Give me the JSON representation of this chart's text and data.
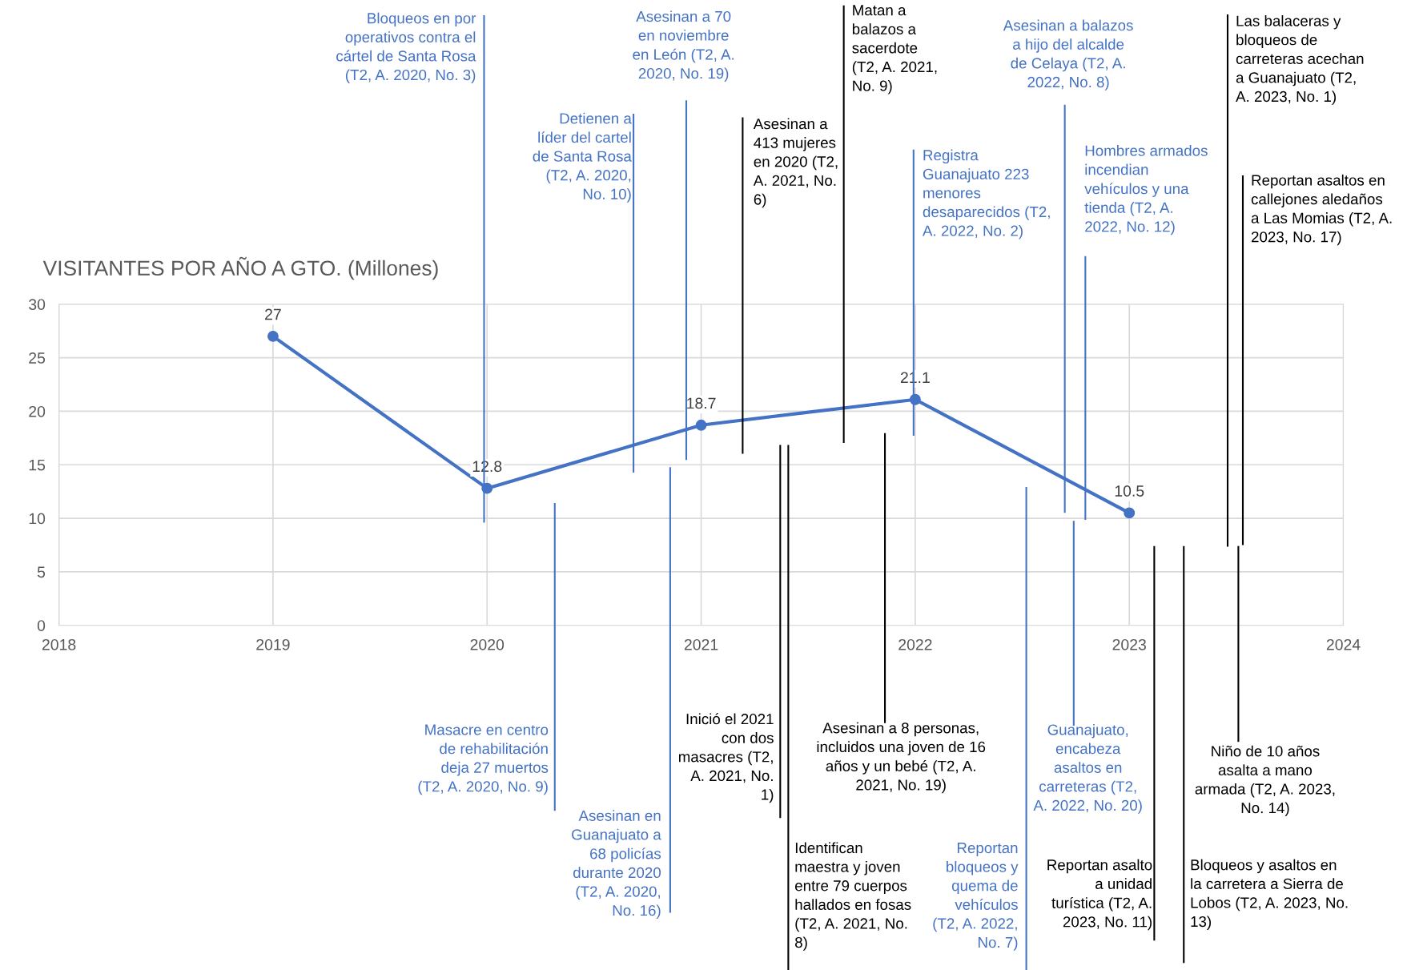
{
  "chart_data": {
    "type": "line",
    "title": "VISITANTES POR AÑO A GTO. (Millones)",
    "x": [
      2019,
      2020,
      2021,
      2022,
      2023
    ],
    "series": [
      {
        "color": "#4472c4",
        "values": [
          27,
          12.8,
          18.7,
          21.1,
          10.5
        ]
      }
    ],
    "xlim": [
      2018,
      2024
    ],
    "xticks": [
      2018,
      2019,
      2020,
      2021,
      2022,
      2023,
      2024
    ],
    "ylim": [
      0,
      30
    ],
    "yticks": [
      0,
      5,
      10,
      15,
      20,
      25,
      30
    ],
    "grid": true,
    "marker": "circle",
    "line_style": "solid",
    "data_labels": true,
    "annotations": [
      "Bloqueos en por\noperativos contra el\ncártel de Santa Rosa\n(T2, A. 2020, No. 3)",
      "Detienen a\nlíder del cartel\nde Santa Rosa\n(T2, A. 2020,\nNo. 10)",
      "Asesinan a 70\nen noviembre\nen León (T2, A.\n2020, No. 19)",
      "Asesinan a\n413 mujeres\nen 2020 (T2,\nA. 2021, No.\n6)",
      "Matan a\nbalazos a\nsacerdote\n(T2, A. 2021,\nNo. 9)",
      "Registra\nGuanajuato 223\nmenores\ndesaparecidos (T2,\nA. 2022, No. 2)",
      "Asesinan a balazos\na hijo del alcalde\nde Celaya (T2, A.\n2022, No. 8)",
      "Hombres armados\nincendian\nvehículos y una\ntienda (T2, A.\n2022, No. 12)",
      "Las balaceras y\nbloqueos de\ncarreteras acechan\na Guanajuato (T2,\nA. 2023, No. 1)",
      "Reportan asaltos en\ncallejones aledaños\na Las Momias (T2, A.\n2023, No. 17)",
      "Masacre en centro\nde rehabilitación\ndeja 27 muertos\n(T2, A. 2020, No. 9)",
      "Asesinan en\nGuanajuato a\n68 policías\ndurante 2020\n(T2, A. 2020,\nNo. 16)",
      "Inició el 2021\ncon dos\nmasacres (T2,\nA. 2021, No.\n1)",
      "Identifican\nmaestra y joven\nentre 79 cuerpos\nhallados en fosas\n(T2, A. 2021, No.\n8)",
      "Asesinan a 8 personas,\nincluidos una joven de 16\naños y un bebé (T2, A.\n2021, No. 19)",
      "Reportan\nbloqueos y\nquema de\nvehículos\n(T2, A. 2022,\nNo. 7)",
      "Guanajuato,\nencabeza\nasaltos en\ncarreteras (T2,\nA. 2022, No. 20)",
      "Reportan asalto\na unidad\nturística (T2, A.\n2023, No. 11)",
      "Bloqueos y asaltos en\nla carretera a Sierra de\nLobos (T2, A. 2023, No.\n13)",
      "Niño de 10 años\nasalta a mano\narmada (T2, A. 2023,\nNo. 14)"
    ]
  }
}
